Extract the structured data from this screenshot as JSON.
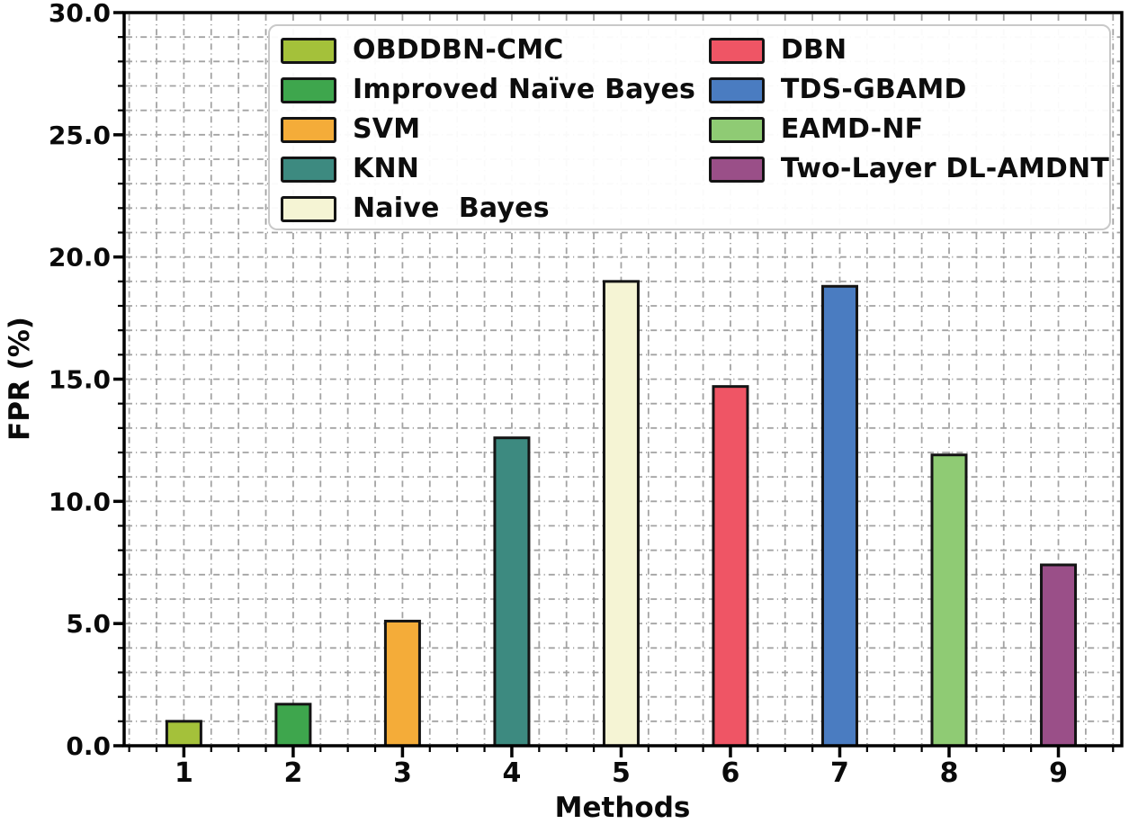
{
  "chart_data": {
    "type": "bar",
    "title": "",
    "xlabel": "Methods",
    "ylabel": "FPR (%)",
    "categories": [
      "1",
      "2",
      "3",
      "4",
      "5",
      "6",
      "7",
      "8",
      "9"
    ],
    "values": [
      1.0,
      1.7,
      5.1,
      12.6,
      19.0,
      14.7,
      18.8,
      11.9,
      7.4
    ],
    "series": [
      {
        "name": "OBDDBN-CMC",
        "x": "1",
        "value": 1.0,
        "color": "#a4c13a"
      },
      {
        "name": "Improved Naïve Bayes",
        "x": "2",
        "value": 1.7,
        "color": "#3ea64d"
      },
      {
        "name": "SVM",
        "x": "3",
        "value": 5.1,
        "color": "#f4ac39"
      },
      {
        "name": "KNN",
        "x": "4",
        "value": 12.6,
        "color": "#3d8a80"
      },
      {
        "name": "Naive  Bayes",
        "x": "5",
        "value": 19.0,
        "color": "#f5f4d4"
      },
      {
        "name": "DBN",
        "x": "6",
        "value": 14.7,
        "color": "#ef5565"
      },
      {
        "name": "TDS-GBAMD",
        "x": "7",
        "value": 18.8,
        "color": "#4a7cc1"
      },
      {
        "name": "EAMD-NF",
        "x": "8",
        "value": 11.9,
        "color": "#8fcb74"
      },
      {
        "name": "Two-Layer DL-AMDNT",
        "x": "9",
        "value": 7.4,
        "color": "#9a4f88"
      }
    ],
    "ylim": [
      0,
      30
    ],
    "ytick_step": 5,
    "ytick_labels": [
      "0.0",
      "5.0",
      "10.0",
      "15.0",
      "20.0",
      "25.0",
      "30.0"
    ],
    "grid": {
      "on": true,
      "style": "dash-dot",
      "minor_x_step": 0.25,
      "minor_y_step": 1
    },
    "legend": {
      "position": "upper center",
      "columns": 2,
      "left_column": [
        "OBDDBN-CMC",
        "Improved Naïve Bayes",
        "SVM",
        "KNN",
        "Naive  Bayes"
      ],
      "right_column": [
        "DBN",
        "TDS-GBAMD",
        "EAMD-NF",
        "Two-Layer DL-AMDNT"
      ]
    }
  },
  "colors": {
    "background": "#ffffff",
    "axis_frame": "#000000",
    "grid": "#a3a3a3",
    "tick_label": "#0a0a0a",
    "legend_border": "#c9c9c9",
    "bar_edge": "#141414"
  }
}
